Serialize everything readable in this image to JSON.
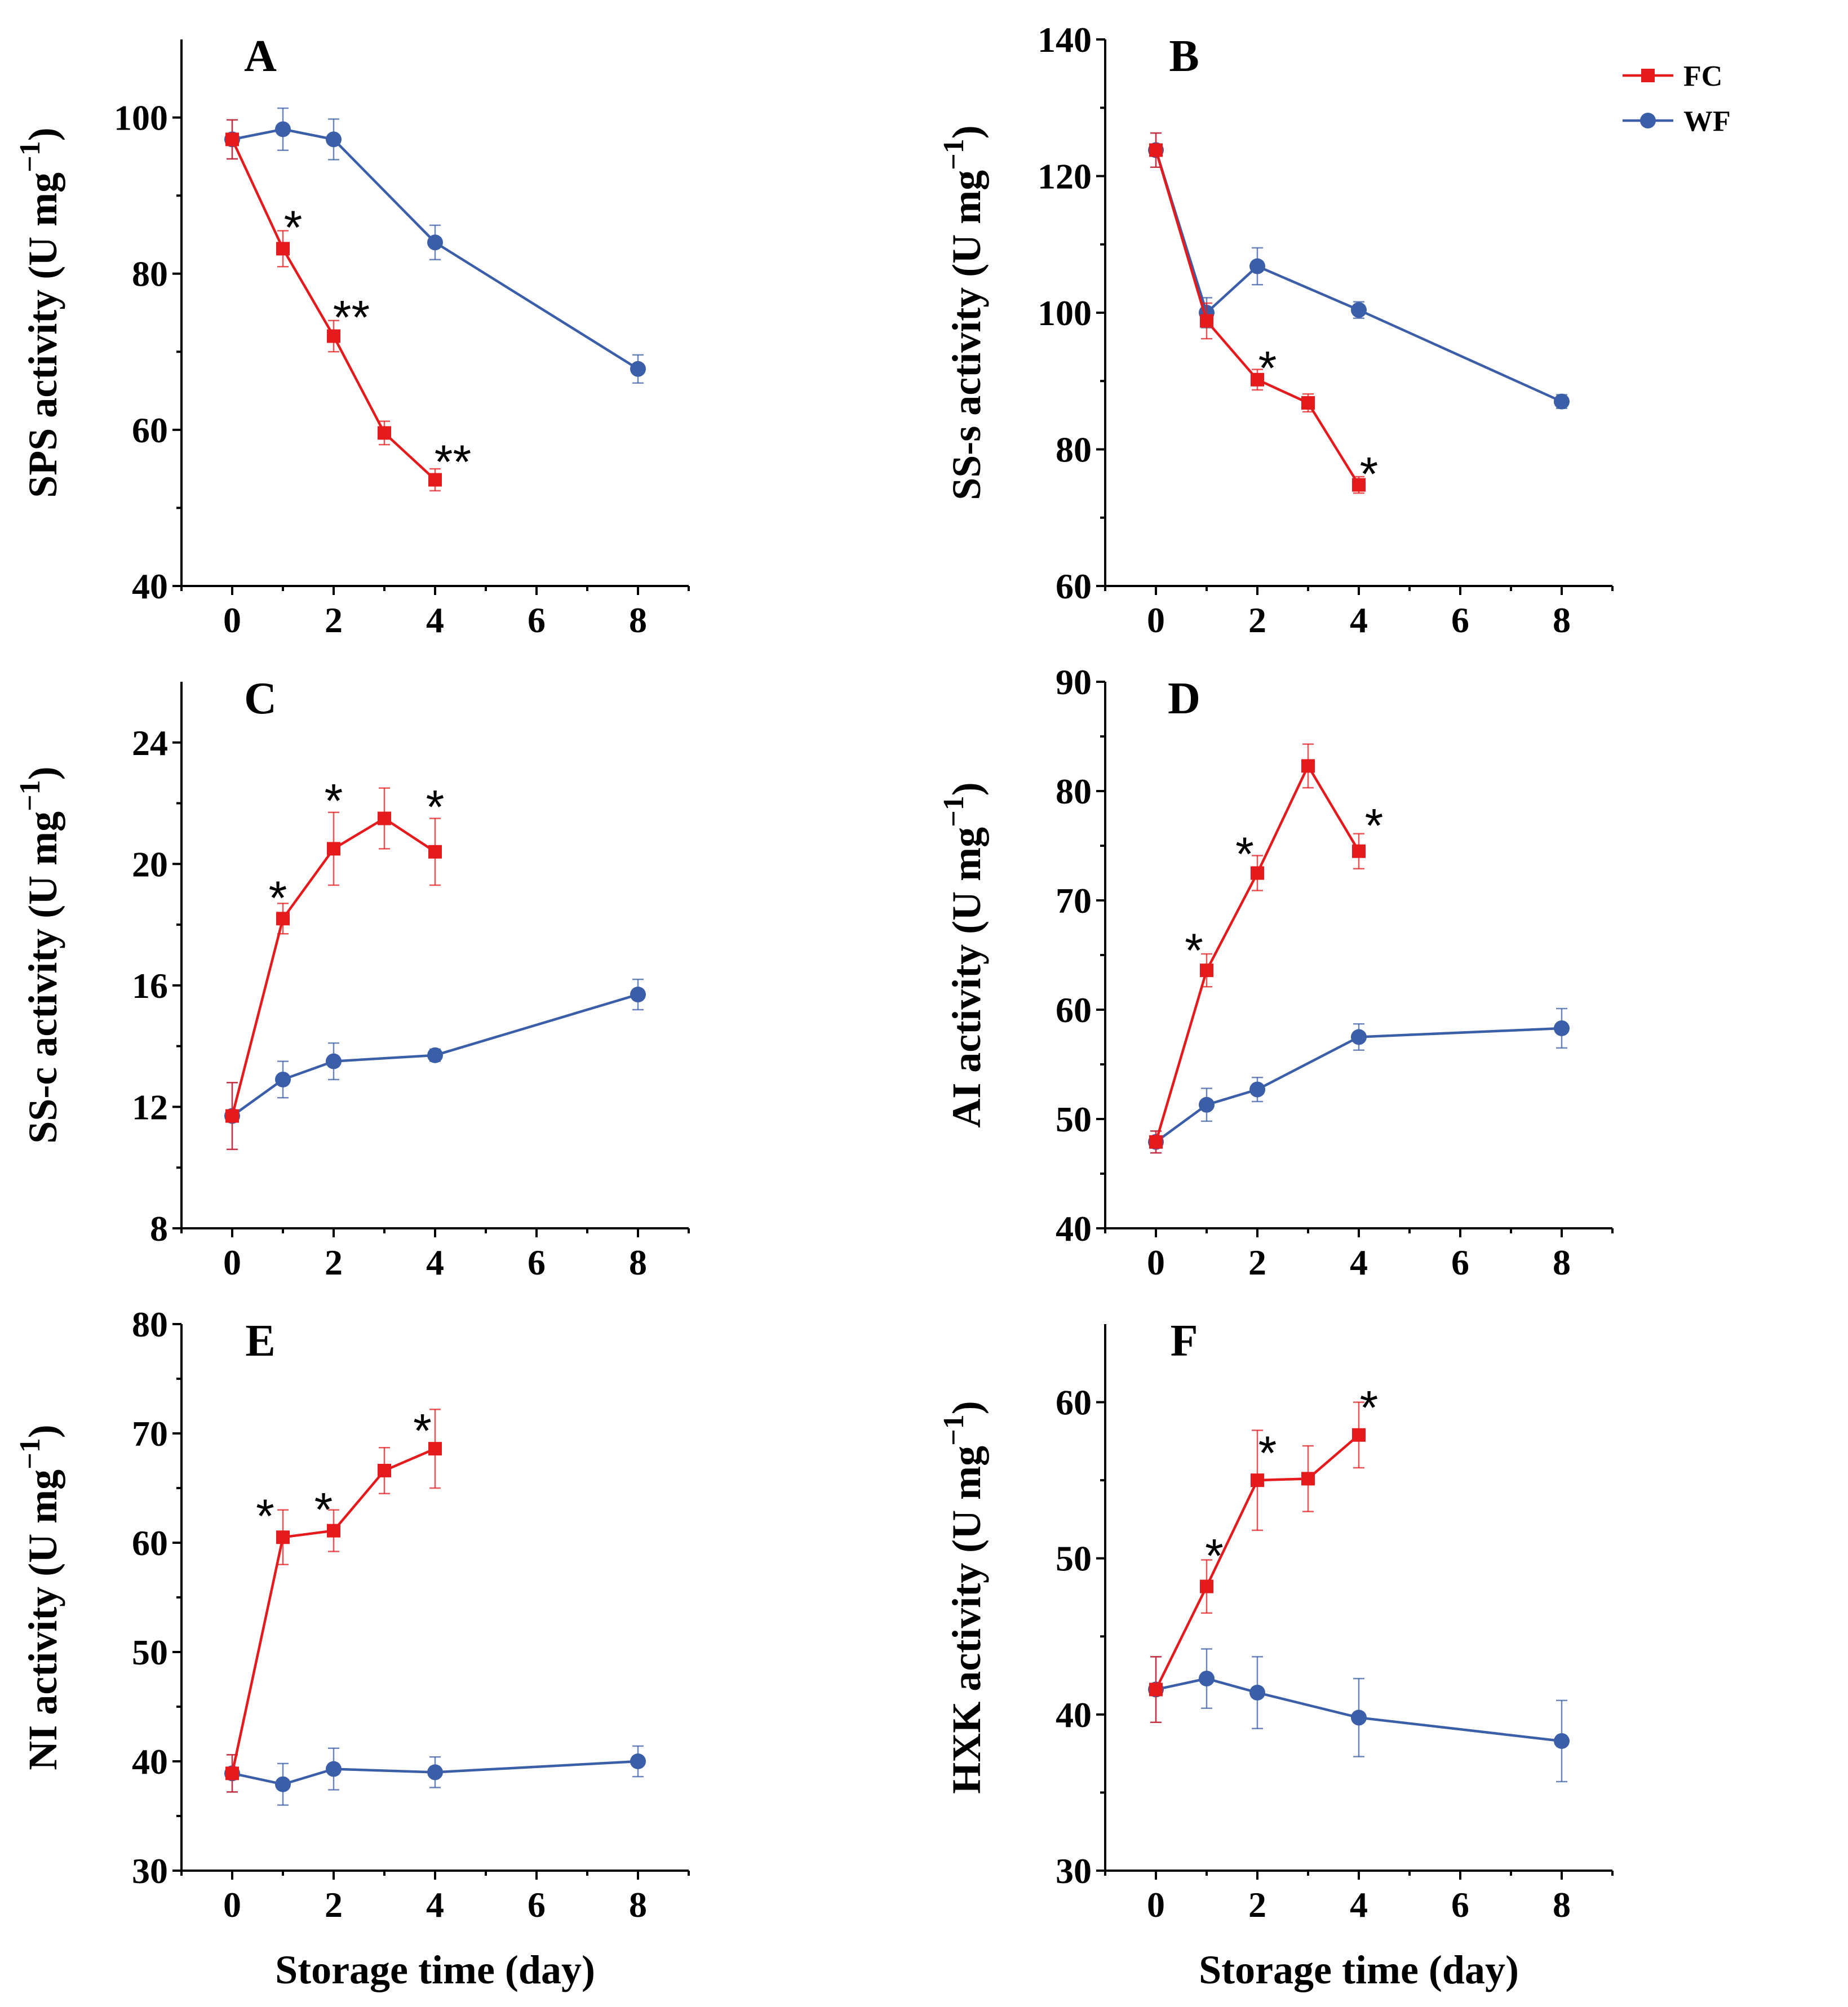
{
  "colors": {
    "FC": "#e41a1c",
    "WF": "#3b5ea8",
    "axis": "#000000"
  },
  "legend": {
    "placement": "top-right of panel B",
    "entries": [
      {
        "series": "FC",
        "label": "FC",
        "marker": "square"
      },
      {
        "series": "WF",
        "label": "WF",
        "marker": "circle"
      }
    ]
  },
  "xlabel": "Storage time (day)",
  "chart_data": [
    {
      "panel": "A",
      "type": "line",
      "title": "A",
      "xlabel": "",
      "ylabel": "SPS activity (U mg",
      "xlim": [
        -1,
        9
      ],
      "ylim": [
        40,
        110
      ],
      "xticks": [
        0,
        2,
        4,
        6,
        8
      ],
      "yticks": [
        40,
        60,
        80,
        100
      ],
      "series": [
        {
          "name": "FC",
          "x": [
            0,
            1,
            2,
            3,
            4
          ],
          "y": [
            97.2,
            83.2,
            72.0,
            59.6,
            53.6
          ],
          "err": [
            2.5,
            2.3,
            2.0,
            1.5,
            1.4
          ]
        },
        {
          "name": "WF",
          "x": [
            0,
            1,
            2,
            4,
            8
          ],
          "y": [
            97.2,
            98.5,
            97.2,
            84.0,
            67.8
          ],
          "err": [
            2.5,
            2.7,
            2.6,
            2.2,
            1.8
          ]
        }
      ],
      "annotations": [
        {
          "text": "*",
          "x": 1.2,
          "y": 86
        },
        {
          "text": "**",
          "x": 2.35,
          "y": 74.5
        },
        {
          "text": "**",
          "x": 4.35,
          "y": 56
        }
      ]
    },
    {
      "panel": "B",
      "type": "line",
      "title": "B",
      "xlabel": "",
      "ylabel": "SS-s activity (U mg",
      "xlim": [
        -1,
        9
      ],
      "ylim": [
        60,
        140
      ],
      "xticks": [
        0,
        2,
        4,
        6,
        8
      ],
      "yticks": [
        60,
        80,
        100,
        120,
        140
      ],
      "series": [
        {
          "name": "FC",
          "x": [
            0,
            1,
            2,
            3,
            4
          ],
          "y": [
            123.8,
            98.8,
            90.2,
            86.8,
            74.8
          ],
          "err": [
            2.5,
            2.6,
            1.5,
            1.3,
            1.2
          ]
        },
        {
          "name": "WF",
          "x": [
            0,
            1,
            2,
            4,
            8
          ],
          "y": [
            123.8,
            100.0,
            106.8,
            100.4,
            87.0
          ],
          "err": [
            2.5,
            2.2,
            2.7,
            1.2,
            1.0
          ]
        }
      ],
      "annotations": [
        {
          "text": "*",
          "x": 2.2,
          "y": 92
        },
        {
          "text": "*",
          "x": 4.2,
          "y": 76.5
        }
      ]
    },
    {
      "panel": "C",
      "type": "line",
      "title": "C",
      "xlabel": "",
      "ylabel": "SS-c activity (U mg",
      "xlim": [
        -1,
        9
      ],
      "ylim": [
        8,
        26
      ],
      "xticks": [
        0,
        2,
        4,
        6,
        8
      ],
      "yticks": [
        8,
        12,
        16,
        20,
        24
      ],
      "series": [
        {
          "name": "FC",
          "x": [
            0,
            1,
            2,
            3,
            4
          ],
          "y": [
            11.7,
            18.2,
            20.5,
            21.5,
            20.4
          ],
          "err": [
            1.1,
            0.5,
            1.2,
            1.0,
            1.1
          ]
        },
        {
          "name": "WF",
          "x": [
            0,
            1,
            2,
            4,
            8
          ],
          "y": [
            11.7,
            12.9,
            13.5,
            13.7,
            15.7
          ],
          "err": [
            1.1,
            0.6,
            0.6,
            0.2,
            0.5
          ]
        }
      ],
      "annotations": [
        {
          "text": "*",
          "x": 0.9,
          "y": 18.9
        },
        {
          "text": "*",
          "x": 2.0,
          "y": 22.1
        },
        {
          "text": "*",
          "x": 4.0,
          "y": 21.9
        }
      ]
    },
    {
      "panel": "D",
      "type": "line",
      "title": "D",
      "xlabel": "",
      "ylabel": "AI activity (U mg",
      "xlim": [
        -1,
        9
      ],
      "ylim": [
        40,
        90
      ],
      "xticks": [
        0,
        2,
        4,
        6,
        8
      ],
      "yticks": [
        40,
        50,
        60,
        70,
        80,
        90
      ],
      "series": [
        {
          "name": "FC",
          "x": [
            0,
            1,
            2,
            3,
            4
          ],
          "y": [
            47.9,
            63.6,
            72.5,
            82.3,
            74.5
          ],
          "err": [
            1.0,
            1.5,
            1.6,
            2.0,
            1.6
          ]
        },
        {
          "name": "WF",
          "x": [
            0,
            1,
            2,
            4,
            8
          ],
          "y": [
            47.9,
            51.3,
            52.7,
            57.5,
            58.3
          ],
          "err": [
            1.0,
            1.5,
            1.1,
            1.2,
            1.8
          ]
        }
      ],
      "annotations": [
        {
          "text": "*",
          "x": 0.75,
          "y": 65.5
        },
        {
          "text": "*",
          "x": 1.75,
          "y": 74.3
        },
        {
          "text": "*",
          "x": 4.3,
          "y": 76.9
        }
      ]
    },
    {
      "panel": "E",
      "type": "line",
      "title": "E",
      "xlabel": "Storage time (day)",
      "ylabel": "NI activity (U mg",
      "xlim": [
        -1,
        9
      ],
      "ylim": [
        30,
        80
      ],
      "xticks": [
        0,
        2,
        4,
        6,
        8
      ],
      "yticks": [
        30,
        40,
        50,
        60,
        70,
        80
      ],
      "series": [
        {
          "name": "FC",
          "x": [
            0,
            1,
            2,
            3,
            4
          ],
          "y": [
            38.9,
            60.5,
            61.1,
            66.6,
            68.6
          ],
          "err": [
            1.7,
            2.5,
            1.9,
            2.1,
            3.6
          ]
        },
        {
          "name": "WF",
          "x": [
            0,
            1,
            2,
            4,
            8
          ],
          "y": [
            38.9,
            37.9,
            39.3,
            39.0,
            40.0
          ],
          "err": [
            1.7,
            1.9,
            1.9,
            1.4,
            1.4
          ]
        }
      ],
      "annotations": [
        {
          "text": "*",
          "x": 0.65,
          "y": 62.5
        },
        {
          "text": "*",
          "x": 1.8,
          "y": 63.1
        },
        {
          "text": "*",
          "x": 3.75,
          "y": 70.3
        }
      ]
    },
    {
      "panel": "F",
      "type": "line",
      "title": "F",
      "xlabel": "Storage time (day)",
      "ylabel": "HXK activity (U mg",
      "xlim": [
        -1,
        9
      ],
      "ylim": [
        30,
        65
      ],
      "xticks": [
        0,
        2,
        4,
        6,
        8
      ],
      "yticks": [
        30,
        40,
        50,
        60
      ],
      "series": [
        {
          "name": "FC",
          "x": [
            0,
            1,
            2,
            3,
            4
          ],
          "y": [
            41.6,
            48.2,
            55.0,
            55.1,
            57.9
          ],
          "err": [
            2.1,
            1.7,
            3.2,
            2.1,
            2.1
          ]
        },
        {
          "name": "WF",
          "x": [
            0,
            1,
            2,
            4,
            8
          ],
          "y": [
            41.6,
            42.3,
            41.4,
            39.8,
            38.3
          ],
          "err": [
            2.1,
            1.9,
            2.3,
            2.5,
            2.6
          ]
        }
      ],
      "annotations": [
        {
          "text": "*",
          "x": 1.15,
          "y": 50.2
        },
        {
          "text": "*",
          "x": 2.2,
          "y": 56.8
        },
        {
          "text": "*",
          "x": 4.2,
          "y": 59.7
        }
      ]
    }
  ]
}
